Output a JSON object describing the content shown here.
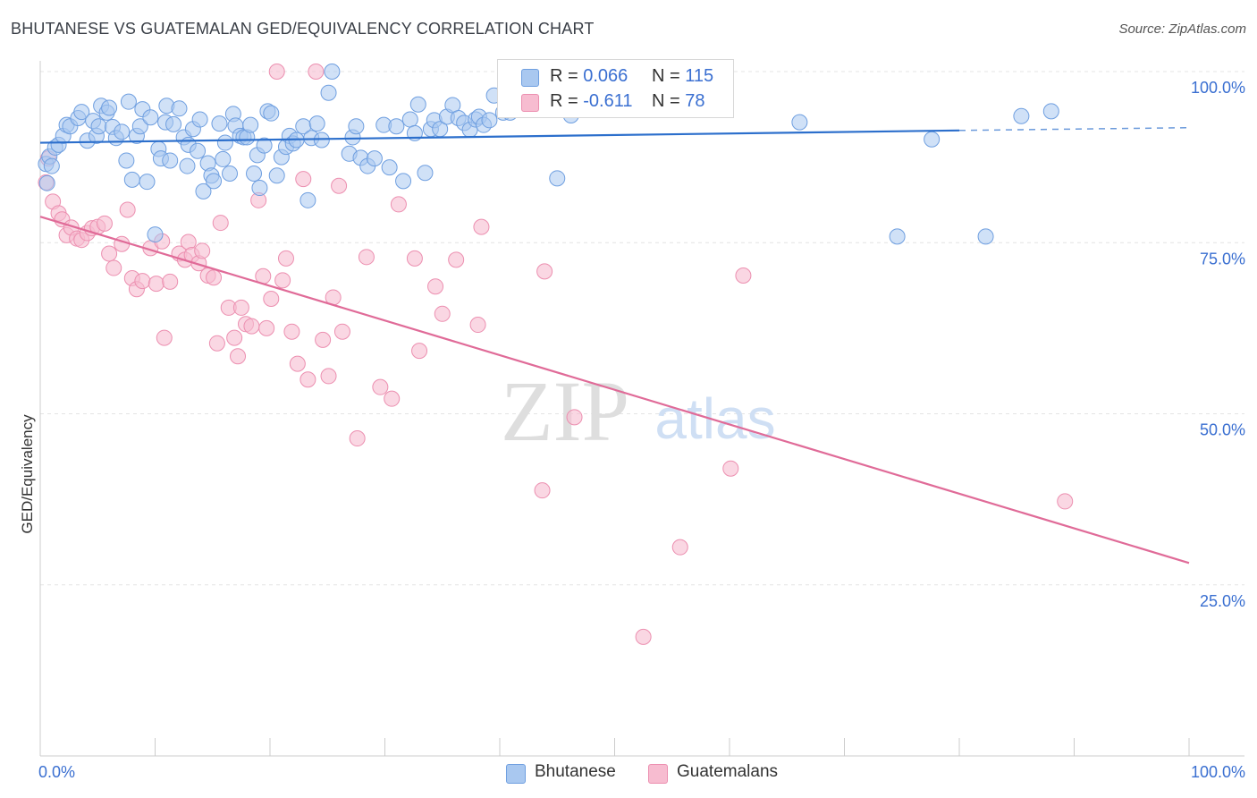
{
  "title": "BHUTANESE VS GUATEMALAN GED/EQUIVALENCY CORRELATION CHART",
  "source": "Source: ZipAtlas.com",
  "watermark": {
    "zip": "ZIP",
    "atlas": "atlas"
  },
  "legend_top": {
    "rows": [
      {
        "r_label": "R =",
        "r_value": "0.066",
        "n_label": "N =",
        "n_value": "115"
      },
      {
        "r_label": "R =",
        "r_value": "-0.611",
        "n_label": "N =",
        "n_value": "78"
      }
    ]
  },
  "legend_bottom": [
    "Bhutanese",
    "Guatemalans"
  ],
  "colors": {
    "blue_fill": "#a9c8f0",
    "blue_stroke": "#6f9fe0",
    "blue_line": "#2c6fcc",
    "pink_fill": "#f7bcd0",
    "pink_stroke": "#ec8fb0",
    "pink_line": "#e06b98",
    "grid": "#e4e4e4",
    "tick_text": "#3a6fd1"
  },
  "chart_data": {
    "type": "scatter",
    "title": "BHUTANESE VS GUATEMALAN GED/EQUIVALENCY CORRELATION CHART",
    "xlabel": "",
    "ylabel": "GED/Equivalency",
    "xlim": [
      0,
      100
    ],
    "ylim": [
      0,
      100
    ],
    "x_tick_labels": [
      "0.0%",
      "100.0%"
    ],
    "y_ticks": [
      25,
      50,
      75,
      100
    ],
    "y_tick_labels": [
      "25.0%",
      "50.0%",
      "75.0%",
      "100.0%"
    ],
    "grid": true,
    "series": [
      {
        "name": "Bhutanese",
        "color": "#a9c8f0",
        "trend": {
          "x": [
            0,
            80
          ],
          "y": [
            89.6,
            91.4
          ],
          "dashed_to": [
            100,
            91.8
          ]
        },
        "points": [
          [
            0.5,
            86.5
          ],
          [
            0.6,
            83.7
          ],
          [
            0.8,
            87.6
          ],
          [
            1.0,
            86.2
          ],
          [
            1.3,
            88.9
          ],
          [
            1.6,
            89.3
          ],
          [
            2.0,
            90.6
          ],
          [
            2.3,
            92.2
          ],
          [
            2.6,
            92.0
          ],
          [
            3.3,
            93.2
          ],
          [
            3.6,
            94.1
          ],
          [
            4.1,
            89.9
          ],
          [
            4.6,
            92.8
          ],
          [
            4.9,
            90.6
          ],
          [
            5.1,
            92.0
          ],
          [
            5.3,
            95.0
          ],
          [
            5.8,
            94.0
          ],
          [
            6.0,
            94.7
          ],
          [
            6.3,
            91.9
          ],
          [
            6.6,
            90.3
          ],
          [
            7.1,
            91.2
          ],
          [
            7.5,
            87.0
          ],
          [
            7.7,
            95.6
          ],
          [
            8.0,
            84.2
          ],
          [
            8.4,
            90.6
          ],
          [
            8.7,
            92.0
          ],
          [
            8.9,
            94.5
          ],
          [
            9.3,
            83.9
          ],
          [
            9.6,
            93.3
          ],
          [
            10.0,
            76.2
          ],
          [
            10.3,
            88.7
          ],
          [
            10.5,
            87.3
          ],
          [
            10.9,
            92.6
          ],
          [
            11.0,
            95.0
          ],
          [
            11.3,
            87.0
          ],
          [
            11.6,
            92.3
          ],
          [
            12.1,
            94.6
          ],
          [
            12.5,
            90.4
          ],
          [
            12.8,
            86.2
          ],
          [
            12.9,
            89.3
          ],
          [
            13.3,
            91.6
          ],
          [
            13.7,
            88.4
          ],
          [
            13.9,
            93.0
          ],
          [
            14.2,
            82.5
          ],
          [
            14.6,
            86.6
          ],
          [
            14.9,
            84.8
          ],
          [
            15.1,
            84.0
          ],
          [
            15.6,
            92.4
          ],
          [
            15.9,
            87.2
          ],
          [
            16.1,
            89.6
          ],
          [
            16.5,
            85.1
          ],
          [
            16.8,
            93.8
          ],
          [
            17.0,
            92.1
          ],
          [
            17.4,
            90.6
          ],
          [
            17.7,
            90.4
          ],
          [
            18.0,
            90.4
          ],
          [
            18.3,
            92.2
          ],
          [
            18.6,
            85.1
          ],
          [
            18.9,
            87.8
          ],
          [
            19.1,
            83.0
          ],
          [
            19.5,
            89.2
          ],
          [
            19.8,
            94.2
          ],
          [
            20.1,
            93.9
          ],
          [
            20.6,
            84.8
          ],
          [
            21.0,
            87.5
          ],
          [
            21.4,
            89.0
          ],
          [
            21.7,
            90.6
          ],
          [
            22.0,
            89.5
          ],
          [
            22.3,
            90.0
          ],
          [
            22.9,
            92.0
          ],
          [
            23.3,
            81.2
          ],
          [
            23.6,
            90.3
          ],
          [
            24.1,
            92.4
          ],
          [
            24.5,
            90.0
          ],
          [
            25.1,
            96.9
          ],
          [
            25.4,
            100.0
          ],
          [
            26.9,
            88.0
          ],
          [
            27.2,
            90.4
          ],
          [
            27.5,
            92.0
          ],
          [
            27.9,
            87.4
          ],
          [
            28.5,
            86.2
          ],
          [
            29.1,
            87.3
          ],
          [
            29.9,
            92.2
          ],
          [
            30.4,
            86.0
          ],
          [
            31.0,
            92.0
          ],
          [
            31.6,
            84.0
          ],
          [
            32.2,
            93.0
          ],
          [
            32.6,
            91.0
          ],
          [
            32.9,
            95.2
          ],
          [
            33.5,
            85.2
          ],
          [
            34.0,
            91.6
          ],
          [
            34.3,
            92.9
          ],
          [
            34.8,
            91.6
          ],
          [
            35.4,
            93.4
          ],
          [
            35.9,
            95.1
          ],
          [
            36.4,
            93.2
          ],
          [
            36.9,
            92.5
          ],
          [
            37.4,
            91.5
          ],
          [
            37.9,
            93.0
          ],
          [
            38.2,
            93.4
          ],
          [
            38.6,
            92.2
          ],
          [
            39.1,
            92.9
          ],
          [
            39.5,
            96.5
          ],
          [
            40.3,
            94.0
          ],
          [
            40.9,
            94.0
          ],
          [
            42.3,
            100.0
          ],
          [
            43.6,
            96.2
          ],
          [
            45.0,
            84.4
          ],
          [
            46.2,
            93.6
          ],
          [
            66.1,
            92.6
          ],
          [
            74.6,
            75.9
          ],
          [
            77.6,
            90.1
          ],
          [
            82.3,
            75.9
          ],
          [
            85.4,
            93.5
          ],
          [
            88.0,
            94.2
          ]
        ]
      },
      {
        "name": "Guatemalans",
        "color": "#f7bcd0",
        "trend": {
          "x": [
            0,
            100
          ],
          "y": [
            78.8,
            28.2
          ]
        },
        "points": [
          [
            0.5,
            83.8
          ],
          [
            0.7,
            87.3
          ],
          [
            1.1,
            81.0
          ],
          [
            1.6,
            79.3
          ],
          [
            1.9,
            78.4
          ],
          [
            2.3,
            76.1
          ],
          [
            2.7,
            77.2
          ],
          [
            3.2,
            75.6
          ],
          [
            3.6,
            75.4
          ],
          [
            4.1,
            76.4
          ],
          [
            4.5,
            77.1
          ],
          [
            5.0,
            77.3
          ],
          [
            5.6,
            77.8
          ],
          [
            6.0,
            73.4
          ],
          [
            6.4,
            71.3
          ],
          [
            7.1,
            74.8
          ],
          [
            7.6,
            79.8
          ],
          [
            8.0,
            69.8
          ],
          [
            8.4,
            68.2
          ],
          [
            8.9,
            69.4
          ],
          [
            9.6,
            74.2
          ],
          [
            10.1,
            69.0
          ],
          [
            10.6,
            75.2
          ],
          [
            10.8,
            61.1
          ],
          [
            11.3,
            69.3
          ],
          [
            12.1,
            73.4
          ],
          [
            12.6,
            72.5
          ],
          [
            12.9,
            75.1
          ],
          [
            13.2,
            73.2
          ],
          [
            13.8,
            72.0
          ],
          [
            14.1,
            73.8
          ],
          [
            14.6,
            70.2
          ],
          [
            15.1,
            69.9
          ],
          [
            15.4,
            60.3
          ],
          [
            15.7,
            77.9
          ],
          [
            16.4,
            65.5
          ],
          [
            16.9,
            61.1
          ],
          [
            17.2,
            58.4
          ],
          [
            17.5,
            65.5
          ],
          [
            17.9,
            63.1
          ],
          [
            18.4,
            62.8
          ],
          [
            19.0,
            81.2
          ],
          [
            19.4,
            70.1
          ],
          [
            19.7,
            62.5
          ],
          [
            20.1,
            66.8
          ],
          [
            20.6,
            100.0
          ],
          [
            21.1,
            69.5
          ],
          [
            21.4,
            72.7
          ],
          [
            21.9,
            62.0
          ],
          [
            22.4,
            57.3
          ],
          [
            22.9,
            84.3
          ],
          [
            23.3,
            55.0
          ],
          [
            24.0,
            100.0
          ],
          [
            24.6,
            60.8
          ],
          [
            25.1,
            55.5
          ],
          [
            25.5,
            67.0
          ],
          [
            26.0,
            83.3
          ],
          [
            26.3,
            62.0
          ],
          [
            27.6,
            46.4
          ],
          [
            28.4,
            72.9
          ],
          [
            29.6,
            53.9
          ],
          [
            30.6,
            52.2
          ],
          [
            31.2,
            80.6
          ],
          [
            32.6,
            72.7
          ],
          [
            33.0,
            59.2
          ],
          [
            34.4,
            68.6
          ],
          [
            35.0,
            64.6
          ],
          [
            36.2,
            72.5
          ],
          [
            38.1,
            63.0
          ],
          [
            38.4,
            77.3
          ],
          [
            43.7,
            38.8
          ],
          [
            43.9,
            70.8
          ],
          [
            46.5,
            49.5
          ],
          [
            52.5,
            17.4
          ],
          [
            55.7,
            30.5
          ],
          [
            60.1,
            42.0
          ],
          [
            61.2,
            70.2
          ],
          [
            89.2,
            37.2
          ]
        ]
      }
    ]
  }
}
